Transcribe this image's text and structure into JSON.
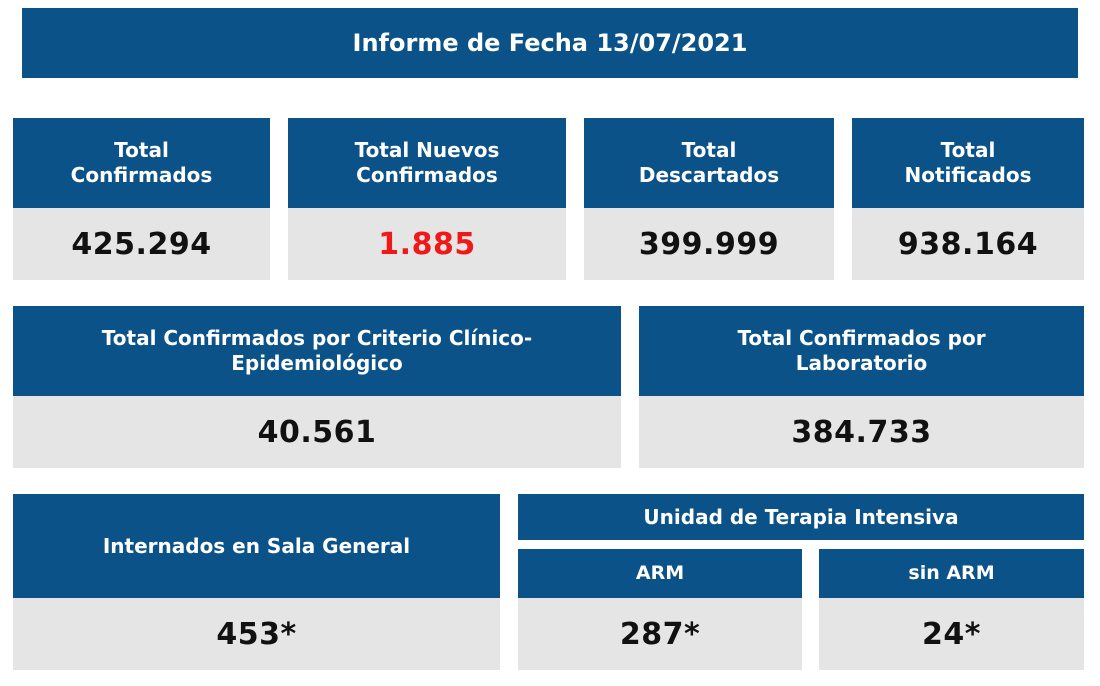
{
  "report": {
    "title": "Informe de Fecha 13/07/2021"
  },
  "row1": [
    {
      "label_line1": "Total",
      "label_line2": "Confirmados",
      "value": "425.294"
    },
    {
      "label_line1": "Total Nuevos",
      "label_line2": "Confirmados",
      "value": "1.885"
    },
    {
      "label_line1": "Total",
      "label_line2": "Descartados",
      "value": "399.999"
    },
    {
      "label_line1": "Total",
      "label_line2": "Notificados",
      "value": "938.164"
    }
  ],
  "row2": [
    {
      "label_line1": "Total Confirmados por Criterio Clínico-",
      "label_line2": "Epidemiológico",
      "value": "40.561"
    },
    {
      "label_line1": "Total Confirmados por",
      "label_line2": "Laboratorio",
      "value": "384.733"
    }
  ],
  "row3": {
    "general": {
      "label": "Internados en Sala General",
      "value": "453*"
    },
    "uti": {
      "label": "Unidad de Terapia Intensiva",
      "arm": {
        "label": "ARM",
        "value": "287*"
      },
      "sin_arm": {
        "label": "sin ARM",
        "value": "24*"
      }
    }
  },
  "colors": {
    "header_bg": "#0b5288",
    "value_bg": "#e5e5e5",
    "highlight": "#f01818"
  }
}
